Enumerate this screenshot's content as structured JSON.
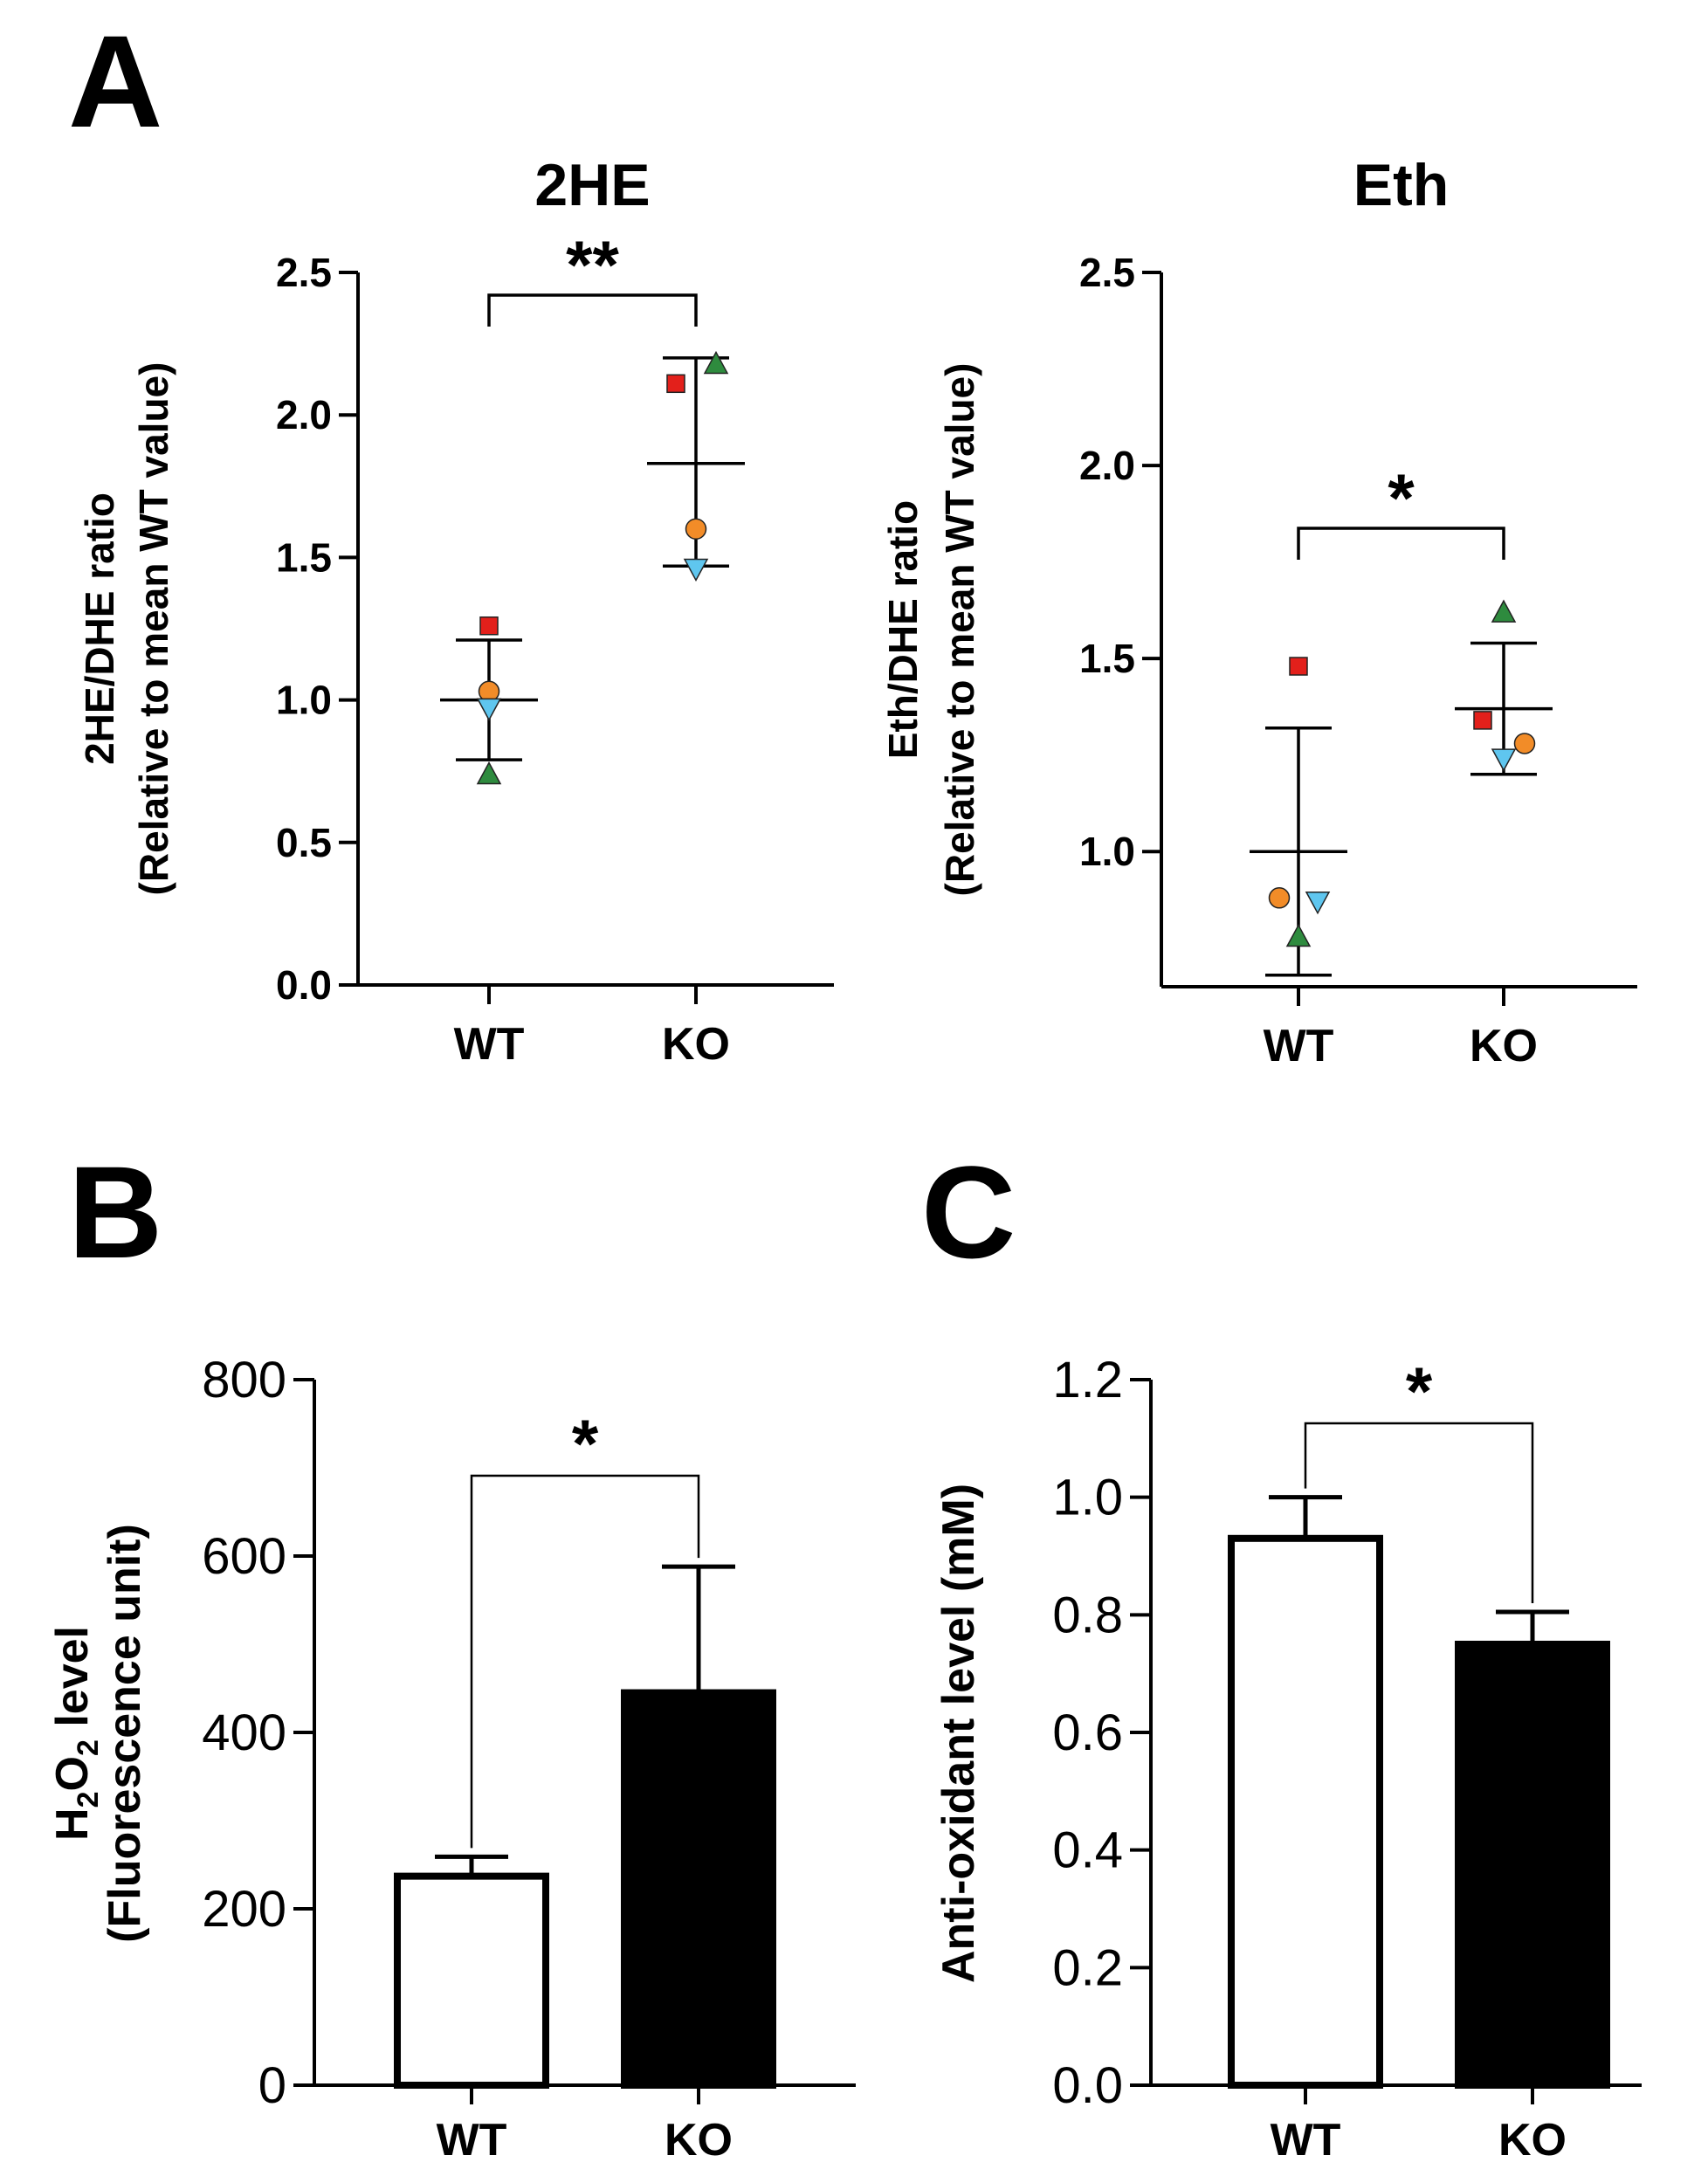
{
  "panels": {
    "A": "A",
    "B": "B",
    "C": "C"
  },
  "colors": {
    "red_square": "#e3201b",
    "orange_circle": "#f28c28",
    "blue_triangle_down": "#5fc6ef",
    "green_triangle_up": "#2e8b3e",
    "ko_bar": "#000000",
    "wt_bar": "#ffffff"
  },
  "chart_data": [
    {
      "id": "a1",
      "type": "scatter",
      "title": "2HE",
      "ylabel_line1": "2HE/DHE ratio",
      "ylabel_line2": "(Relative to mean WT value)",
      "categories": [
        "WT",
        "KO"
      ],
      "ylim": [
        0.0,
        2.5
      ],
      "yticks": [
        "0.0",
        "0.5",
        "1.0",
        "1.5",
        "2.0",
        "2.5"
      ],
      "points": [
        {
          "group": "WT",
          "marker": "square",
          "value": 1.26
        },
        {
          "group": "WT",
          "marker": "circle",
          "value": 1.03
        },
        {
          "group": "WT",
          "marker": "triangle-down",
          "value": 0.97
        },
        {
          "group": "WT",
          "marker": "triangle-up",
          "value": 0.74
        },
        {
          "group": "KO",
          "marker": "square",
          "value": 2.11
        },
        {
          "group": "KO",
          "marker": "triangle-up",
          "value": 2.18
        },
        {
          "group": "KO",
          "marker": "circle",
          "value": 1.6
        },
        {
          "group": "KO",
          "marker": "triangle-down",
          "value": 1.46
        }
      ],
      "summary": [
        {
          "group": "WT",
          "mean": 1.0,
          "upper": 1.21,
          "lower": 0.79
        },
        {
          "group": "KO",
          "mean": 1.83,
          "upper": 2.2,
          "lower": 1.47
        }
      ],
      "significance": "**"
    },
    {
      "id": "a2",
      "type": "scatter",
      "title": "Eth",
      "ylabel_line1": "Eth/DHE ratio",
      "ylabel_line2": "(Relative to mean WT value)",
      "categories": [
        "WT",
        "KO"
      ],
      "ylim": [
        0.65,
        2.5
      ],
      "yticks": [
        "1.0",
        "1.5",
        "2.0",
        "2.5"
      ],
      "points": [
        {
          "group": "WT",
          "marker": "square",
          "value": 1.48
        },
        {
          "group": "WT",
          "marker": "circle",
          "value": 0.88
        },
        {
          "group": "WT",
          "marker": "triangle-down",
          "value": 0.87
        },
        {
          "group": "WT",
          "marker": "triangle-up",
          "value": 0.78
        },
        {
          "group": "KO",
          "marker": "triangle-up",
          "value": 1.62
        },
        {
          "group": "KO",
          "marker": "square",
          "value": 1.34
        },
        {
          "group": "KO",
          "marker": "circle",
          "value": 1.28
        },
        {
          "group": "KO",
          "marker": "triangle-down",
          "value": 1.24
        }
      ],
      "summary": [
        {
          "group": "WT",
          "mean": 1.0,
          "upper": 1.32,
          "lower": 0.68
        },
        {
          "group": "KO",
          "mean": 1.37,
          "upper": 1.54,
          "lower": 1.2
        }
      ],
      "significance": "*"
    },
    {
      "id": "b",
      "type": "bar",
      "ylabel_main": "H",
      "ylabel_sub1": "2",
      "ylabel_mid": "O",
      "ylabel_sub2": "2",
      "ylabel_tail": " level",
      "ylabel_line2": "(Fluorescence unit)",
      "categories": [
        "WT",
        "KO"
      ],
      "values": [
        237,
        445
      ],
      "errors": [
        22,
        143
      ],
      "ylim": [
        0,
        800
      ],
      "yticks": [
        "0",
        "200",
        "400",
        "600",
        "800"
      ],
      "significance": "*"
    },
    {
      "id": "c",
      "type": "bar",
      "ylabel": "Anti-oxidant level (mM)",
      "categories": [
        "WT",
        "KO"
      ],
      "values": [
        0.93,
        0.75
      ],
      "errors": [
        0.07,
        0.055
      ],
      "ylim": [
        0.0,
        1.2
      ],
      "yticks": [
        "0.0",
        "0.2",
        "0.4",
        "0.6",
        "0.8",
        "1.0",
        "1.2"
      ],
      "significance": "*"
    }
  ]
}
